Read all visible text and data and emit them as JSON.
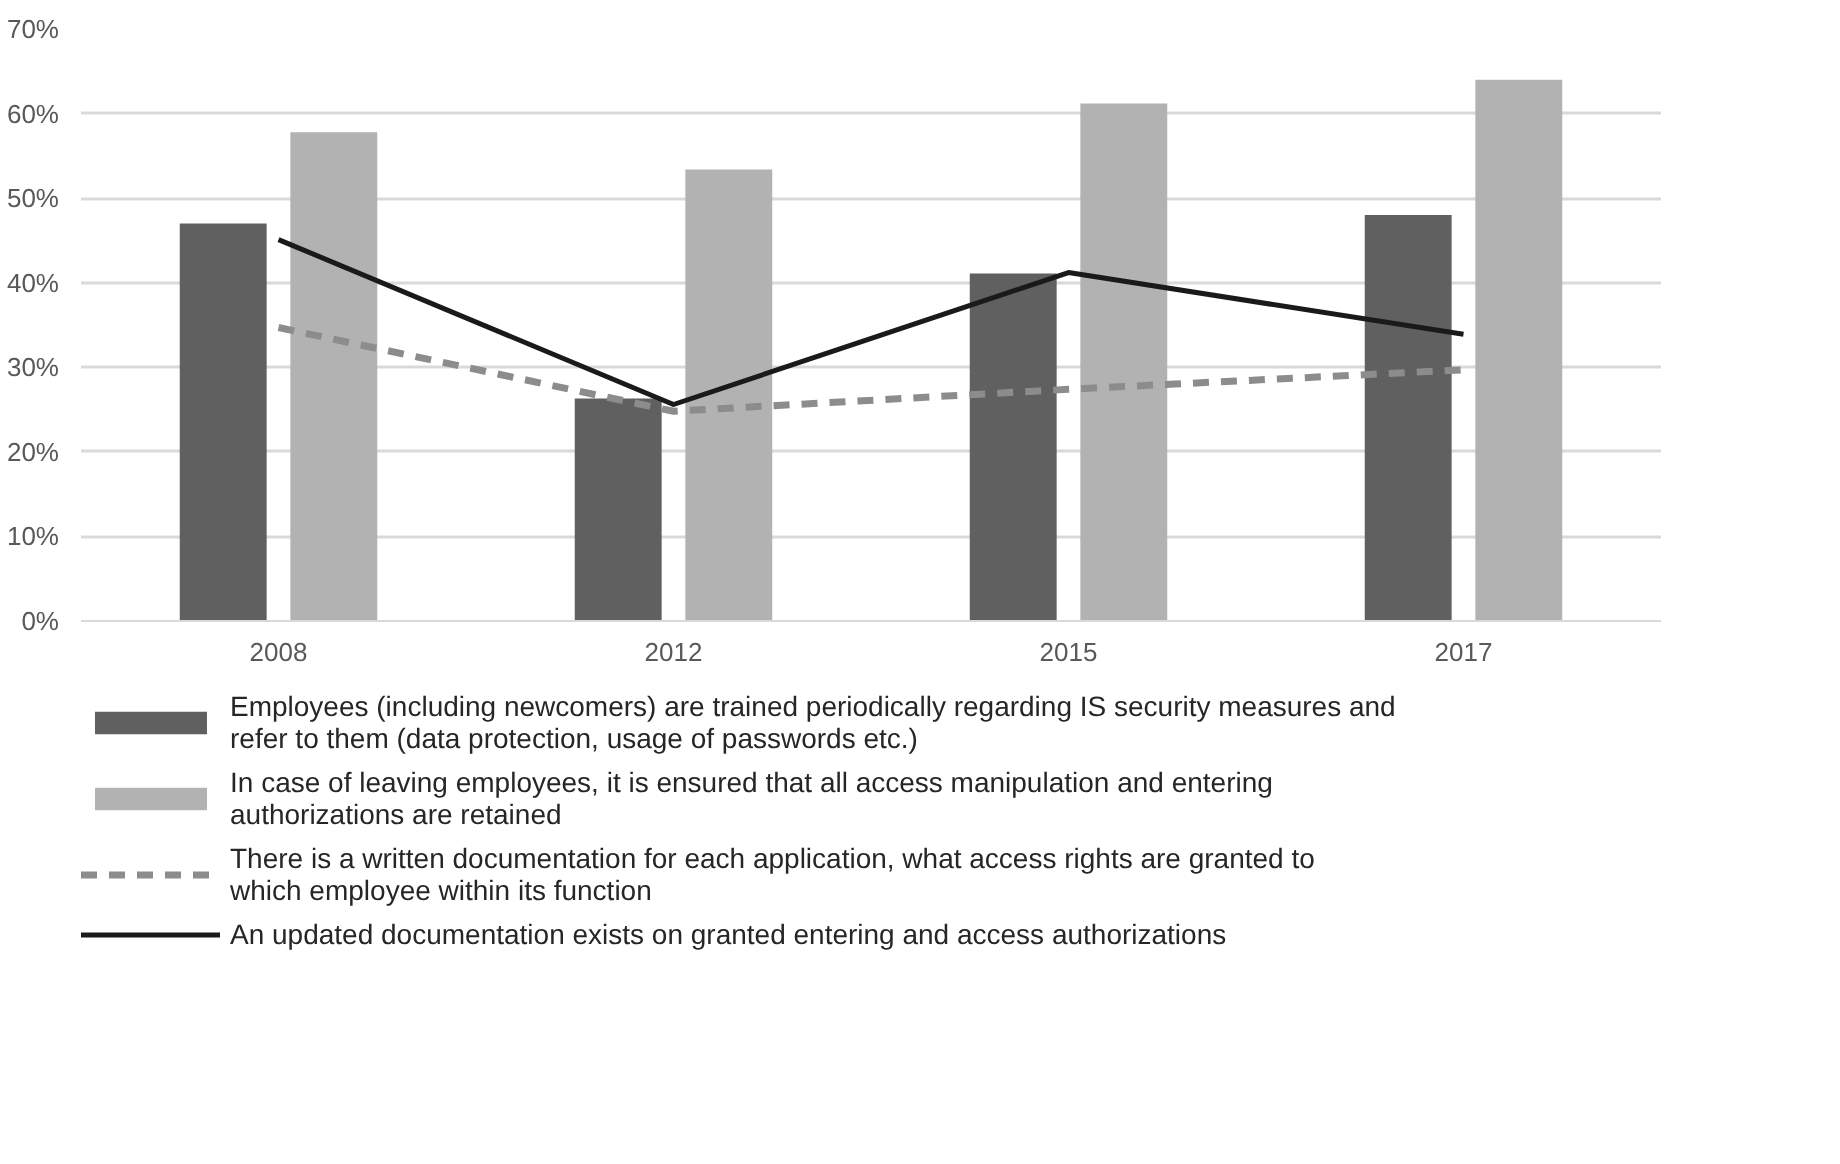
{
  "chart_data": {
    "type": "bar",
    "categories": [
      "2008",
      "2012",
      "2015",
      "2017"
    ],
    "series": [
      {
        "name": "Employees (including newcomers) are trained periodically regarding IS security measures and refer to them (data protection, usage of passwords etc.)",
        "color": "#606060",
        "values": [
          47,
          26.3,
          41.1,
          48
        ]
      },
      {
        "name": "In case of leaving employees, it is ensured that all access manipulation and entering authorizations are retained",
        "color": "#b2b2b2",
        "values": [
          57.8,
          53.4,
          61.2,
          64
        ]
      },
      {
        "name": "There is a written documentation for each application, what access rights are granted to which employee within its function",
        "type": "line",
        "line_style": "dashed",
        "color": "#8c8c8c",
        "values": [
          34.7,
          24.8,
          27.4,
          29.7
        ]
      },
      {
        "name": "An updated documentation exists on granted entering and access authorizations",
        "type": "line",
        "line_style": "solid",
        "color": "#1a1a1a",
        "values": [
          45.1,
          25.6,
          41.2,
          33.9
        ]
      }
    ],
    "ylim": [
      0,
      70
    ],
    "yticks": [
      {
        "value": 0,
        "label": "0%"
      },
      {
        "value": 10,
        "label": "10%"
      },
      {
        "value": 20,
        "label": "20%"
      },
      {
        "value": 30,
        "label": "30%"
      },
      {
        "value": 40,
        "label": "40%"
      },
      {
        "value": 50,
        "label": "50%"
      },
      {
        "value": 60,
        "label": "60%"
      },
      {
        "value": 70,
        "label": "70%"
      }
    ],
    "grid": "y",
    "legend": "bottom"
  }
}
